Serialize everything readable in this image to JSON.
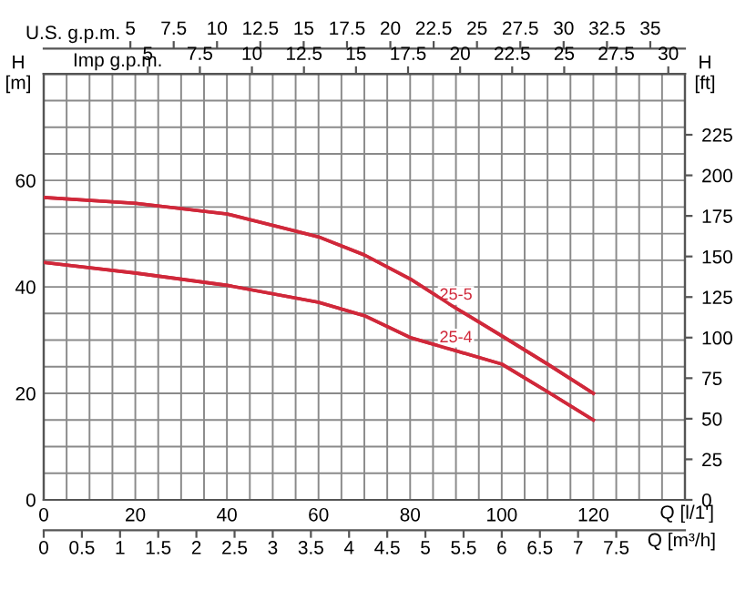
{
  "chart_data": [
    {
      "type": "line",
      "xlabel": "Q [l/1']",
      "ylabel": "H\n[m]",
      "y2label": "H\n[ft]",
      "x2label": "U.S. g.p.m.",
      "xlim": [
        0,
        140
      ],
      "ylim": [
        0,
        80
      ],
      "y2lim": [
        0,
        262.5
      ],
      "x2lim": [
        0,
        37.0
      ],
      "xticks": [
        0,
        {
          "value": 5,
          "label": null
        },
        {
          "value": 10,
          "label": null
        },
        {
          "value": 15,
          "label": null
        },
        20,
        {
          "value": 25,
          "label": null
        },
        {
          "value": 30,
          "label": null
        },
        {
          "value": 35,
          "label": null
        },
        40,
        {
          "value": 45,
          "label": null
        },
        {
          "value": 50,
          "label": null
        },
        {
          "value": 55,
          "label": null
        },
        60,
        {
          "value": 65,
          "label": null
        },
        {
          "value": 70,
          "label": null
        },
        {
          "value": 75,
          "label": null
        },
        80,
        {
          "value": 85,
          "label": null
        },
        {
          "value": 90,
          "label": null
        },
        {
          "value": 95,
          "label": null
        },
        100,
        {
          "value": 105,
          "label": null
        },
        {
          "value": 110,
          "label": null
        },
        {
          "value": 115,
          "label": null
        },
        120,
        {
          "value": 125,
          "label": null
        },
        {
          "value": 130,
          "label": null
        },
        {
          "value": 135,
          "label": null
        }
      ],
      "yticks": [
        0,
        {
          "value": 5,
          "label": null
        },
        {
          "value": 10,
          "label": null
        },
        {
          "value": 15,
          "label": null
        },
        20,
        {
          "value": 25,
          "label": null
        },
        {
          "value": 30,
          "label": null
        },
        {
          "value": 35,
          "label": null
        },
        40,
        {
          "value": 45,
          "label": null
        },
        {
          "value": 50,
          "label": null
        },
        {
          "value": 55,
          "label": null
        },
        60,
        {
          "value": 65,
          "label": null
        },
        {
          "value": 70,
          "label": null
        },
        {
          "value": 75,
          "label": null
        }
      ],
      "y2ticks": [
        0,
        25,
        50,
        75,
        100,
        125,
        150,
        175,
        200,
        225
      ],
      "x2ticks": [
        5,
        7.5,
        10,
        12.5,
        15,
        17.5,
        20,
        22.5,
        25,
        27.5,
        30,
        32.5,
        35
      ],
      "grid": true,
      "line_style": "solid",
      "series": [
        {
          "name": "25-5",
          "color": "#d0283a",
          "x": [
            0,
            20,
            40,
            60,
            70,
            80,
            90,
            100,
            110,
            120
          ],
          "values": [
            56.8,
            55.7,
            53.7,
            49.4,
            46,
            41.5,
            36,
            30.8,
            25.5,
            20
          ]
        },
        {
          "name": "25-4",
          "color": "#d0283a",
          "x": [
            0,
            20,
            40,
            60,
            70,
            80,
            90,
            100,
            110,
            120
          ],
          "values": [
            44.6,
            42.6,
            40.3,
            37.1,
            34.6,
            30.5,
            28,
            25.5,
            20.3,
            15
          ]
        }
      ]
    },
    {
      "type": "line",
      "tick_labels": "x",
      "xlabel": "Q [m³/h]",
      "x2label": "Imp g.p.m.",
      "xlim": [
        0,
        8.4
      ],
      "ylim": [
        0,
        80
      ],
      "x2lim": [
        0,
        30.8
      ],
      "xticks": [
        0,
        0.5,
        1,
        1.5,
        2,
        2.5,
        3,
        3.5,
        4,
        4.5,
        5,
        5.5,
        6,
        6.5,
        7,
        7.5
      ],
      "x2ticks": [
        5,
        7.5,
        10,
        12.5,
        15,
        17.5,
        20,
        22.5,
        25,
        27.5,
        30
      ],
      "line_style": "solid",
      "series": [
        {
          "color": "#d0283a",
          "x": [
            0,
            1.2,
            2.4,
            3.6,
            4.2,
            4.8,
            5.4,
            6.0,
            6.6,
            7.2
          ],
          "values": [
            56.8,
            55.7,
            53.7,
            49.4,
            46,
            41.5,
            36,
            30.8,
            25.5,
            20
          ]
        },
        {
          "color": "#d0283a",
          "x": [
            0,
            1.2,
            2.4,
            3.6,
            4.2,
            4.8,
            5.4,
            6.0,
            6.6,
            7.2
          ],
          "values": [
            44.6,
            42.6,
            40.3,
            37.1,
            34.6,
            30.5,
            28,
            25.5,
            20.3,
            15
          ]
        }
      ]
    }
  ]
}
